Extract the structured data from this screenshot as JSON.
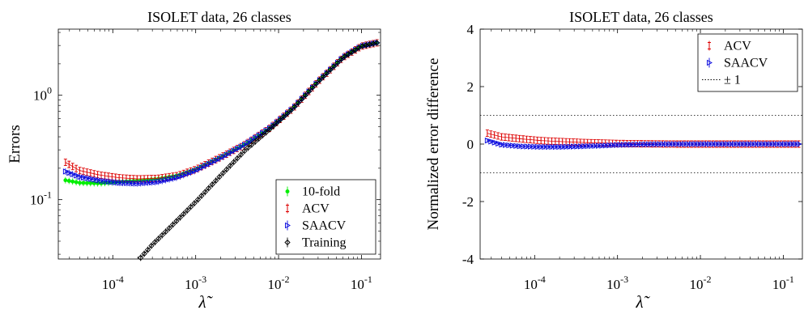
{
  "chart_data": [
    {
      "type": "line",
      "title": "ISOLET data, 26 classes",
      "xlabel": "λ̃",
      "ylabel": "Errors",
      "x_scale": "log",
      "y_scale": "log",
      "xlim": [
        2.2e-05,
        0.17
      ],
      "ylim": [
        0.027,
        4.3
      ],
      "x_ticks": [
        {
          "value": 0.0001,
          "base": "10",
          "exp": "-4"
        },
        {
          "value": 0.001,
          "base": "10",
          "exp": "-3"
        },
        {
          "value": 0.01,
          "base": "10",
          "exp": "-2"
        },
        {
          "value": 0.1,
          "base": "10",
          "exp": "-1"
        }
      ],
      "y_ticks": [
        {
          "value": 0.1,
          "base": "10",
          "exp": "-1"
        },
        {
          "value": 1,
          "base": "10",
          "exp": "0"
        }
      ],
      "legend_position": "bottom-right",
      "series": [
        {
          "name": "10-fold",
          "color": "#00ee00",
          "marker": "dot",
          "x": [
            2.5e-05,
            4e-05,
            7e-05,
            0.00012,
            0.0002,
            0.00035,
            0.0006,
            0.001,
            0.002,
            0.004,
            0.008,
            0.015,
            0.03,
            0.06,
            0.1,
            0.16
          ],
          "y": [
            0.155,
            0.145,
            0.143,
            0.148,
            0.152,
            0.158,
            0.17,
            0.195,
            0.255,
            0.34,
            0.49,
            0.75,
            1.35,
            2.3,
            2.95,
            3.2
          ]
        },
        {
          "name": "ACV",
          "color": "#dd0000",
          "marker": "errorbar",
          "x": [
            2.5e-05,
            4e-05,
            7e-05,
            0.00012,
            0.0002,
            0.00035,
            0.0006,
            0.001,
            0.002,
            0.004,
            0.008,
            0.015,
            0.03,
            0.06,
            0.1,
            0.16
          ],
          "y": [
            0.235,
            0.19,
            0.172,
            0.162,
            0.158,
            0.16,
            0.17,
            0.195,
            0.255,
            0.34,
            0.49,
            0.75,
            1.35,
            2.3,
            2.95,
            3.2
          ]
        },
        {
          "name": "SAACV",
          "color": "#0000dd",
          "marker": "triangle",
          "x": [
            2.5e-05,
            4e-05,
            7e-05,
            0.00012,
            0.0002,
            0.00035,
            0.0006,
            0.001,
            0.002,
            0.004,
            0.008,
            0.015,
            0.03,
            0.06,
            0.1,
            0.16
          ],
          "y": [
            0.19,
            0.165,
            0.152,
            0.145,
            0.143,
            0.148,
            0.163,
            0.19,
            0.25,
            0.34,
            0.49,
            0.75,
            1.35,
            2.3,
            2.95,
            3.2
          ]
        },
        {
          "name": "Training",
          "color": "#000000",
          "marker": "diamond",
          "x": [
            0.00021,
            0.0003,
            0.0005,
            0.001,
            0.002,
            0.004,
            0.008,
            0.015,
            0.03,
            0.06,
            0.1,
            0.16
          ],
          "y": [
            0.027,
            0.037,
            0.055,
            0.095,
            0.17,
            0.3,
            0.48,
            0.75,
            1.35,
            2.3,
            2.95,
            3.2
          ]
        }
      ]
    },
    {
      "type": "line",
      "title": "ISOLET data, 26 classes",
      "xlabel": "λ̃",
      "ylabel": "Normalized error difference",
      "x_scale": "log",
      "xlim": [
        2.2e-05,
        0.17
      ],
      "ylim": [
        -4,
        4
      ],
      "x_ticks": [
        {
          "value": 0.0001,
          "base": "10",
          "exp": "-4"
        },
        {
          "value": 0.001,
          "base": "10",
          "exp": "-3"
        },
        {
          "value": 0.01,
          "base": "10",
          "exp": "-2"
        },
        {
          "value": 0.1,
          "base": "10",
          "exp": "-1"
        }
      ],
      "y_ticks": [
        {
          "value": -4,
          "label": "-4"
        },
        {
          "value": -2,
          "label": "-2"
        },
        {
          "value": 0,
          "label": "0"
        },
        {
          "value": 2,
          "label": "2"
        },
        {
          "value": 4,
          "label": "4"
        }
      ],
      "legend_position": "top-right",
      "series": [
        {
          "name": "ACV",
          "color": "#dd0000",
          "marker": "errorbar",
          "x": [
            2.5e-05,
            4e-05,
            7e-05,
            0.00012,
            0.0002,
            0.00035,
            0.0006,
            0.001,
            0.002,
            0.005,
            0.01,
            0.03,
            0.1,
            0.16
          ],
          "y": [
            0.4,
            0.25,
            0.18,
            0.12,
            0.09,
            0.06,
            0.04,
            0.02,
            0.01,
            0.0,
            0.0,
            0.0,
            0.0,
            0.0
          ]
        },
        {
          "name": "SAACV",
          "color": "#0000dd",
          "marker": "triangle",
          "x": [
            2.5e-05,
            4e-05,
            7e-05,
            0.00012,
            0.0002,
            0.00035,
            0.0006,
            0.001,
            0.002,
            0.005,
            0.01,
            0.03,
            0.1,
            0.16
          ],
          "y": [
            0.15,
            -0.02,
            -0.08,
            -0.1,
            -0.1,
            -0.08,
            -0.06,
            -0.03,
            -0.01,
            0.0,
            0.0,
            0.0,
            0.0,
            0.0
          ]
        }
      ],
      "reference_lines": {
        "label": "± 1",
        "style": "dotted",
        "values": [
          1,
          -1
        ]
      }
    }
  ]
}
